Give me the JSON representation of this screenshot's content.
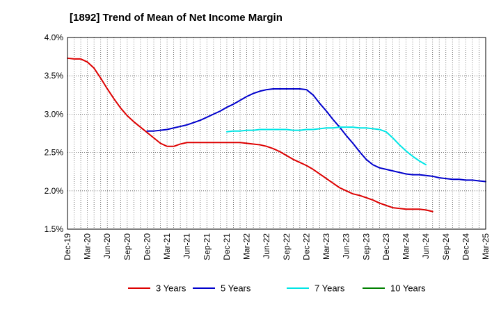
{
  "chart_data": {
    "type": "line",
    "title": "[1892]  Trend of Mean of Net Income Margin",
    "xlabel": "",
    "ylabel": "",
    "x_tick_labels": [
      "Dec-19",
      "Mar-20",
      "Jun-20",
      "Sep-20",
      "Dec-20",
      "Mar-21",
      "Jun-21",
      "Sep-21",
      "Dec-21",
      "Mar-22",
      "Jun-22",
      "Sep-22",
      "Dec-22",
      "Mar-23",
      "Jun-23",
      "Sep-23",
      "Dec-23",
      "Mar-24",
      "Jun-24",
      "Sep-24",
      "Dec-24",
      "Mar-25"
    ],
    "y_tick_labels": [
      "4.0%",
      "3.5%",
      "3.0%",
      "2.5%",
      "2.0%",
      "1.5%"
    ],
    "y_ticks": [
      4.0,
      3.5,
      3.0,
      2.5,
      2.0,
      1.5
    ],
    "ylim": [
      1.5,
      4.0
    ],
    "grid": true,
    "legend_position": "bottom",
    "series": [
      {
        "name": "3 Years",
        "color": "#dd0000",
        "start": "Dec-19",
        "values": [
          3.73,
          3.72,
          3.72,
          3.68,
          3.6,
          3.47,
          3.33,
          3.2,
          3.08,
          2.98,
          2.9,
          2.83,
          2.76,
          2.69,
          2.62,
          2.58,
          2.58,
          2.61,
          2.63,
          2.63,
          2.63,
          2.63,
          2.63,
          2.63,
          2.63,
          2.63,
          2.63,
          2.62,
          2.61,
          2.6,
          2.58,
          2.55,
          2.51,
          2.46,
          2.41,
          2.37,
          2.33,
          2.28,
          2.22,
          2.16,
          2.1,
          2.04,
          2.0,
          1.96,
          1.94,
          1.91,
          1.88,
          1.84,
          1.81,
          1.78,
          1.77,
          1.76,
          1.76,
          1.76,
          1.75,
          1.73
        ]
      },
      {
        "name": "5 Years",
        "color": "#0000cc",
        "start": "Dec-20",
        "values": [
          2.78,
          2.78,
          2.79,
          2.8,
          2.82,
          2.84,
          2.86,
          2.89,
          2.92,
          2.96,
          3.0,
          3.04,
          3.09,
          3.13,
          3.18,
          3.23,
          3.27,
          3.3,
          3.32,
          3.33,
          3.33,
          3.33,
          3.33,
          3.33,
          3.32,
          3.25,
          3.14,
          3.04,
          2.93,
          2.83,
          2.72,
          2.62,
          2.51,
          2.41,
          2.34,
          2.3,
          2.28,
          2.26,
          2.24,
          2.22,
          2.21,
          2.21,
          2.2,
          2.19,
          2.17,
          2.16,
          2.15,
          2.15,
          2.14,
          2.14,
          2.13,
          2.12
        ]
      },
      {
        "name": "7 Years",
        "color": "#00e5e5",
        "start": "Dec-21",
        "values": [
          2.77,
          2.78,
          2.78,
          2.79,
          2.79,
          2.8,
          2.8,
          2.8,
          2.8,
          2.8,
          2.79,
          2.79,
          2.8,
          2.8,
          2.81,
          2.82,
          2.82,
          2.83,
          2.83,
          2.83,
          2.82,
          2.82,
          2.81,
          2.8,
          2.77,
          2.69,
          2.6,
          2.52,
          2.45,
          2.39,
          2.34
        ]
      },
      {
        "name": "10 Years",
        "color": "#008000",
        "start": "Dec-19",
        "values": []
      }
    ]
  }
}
